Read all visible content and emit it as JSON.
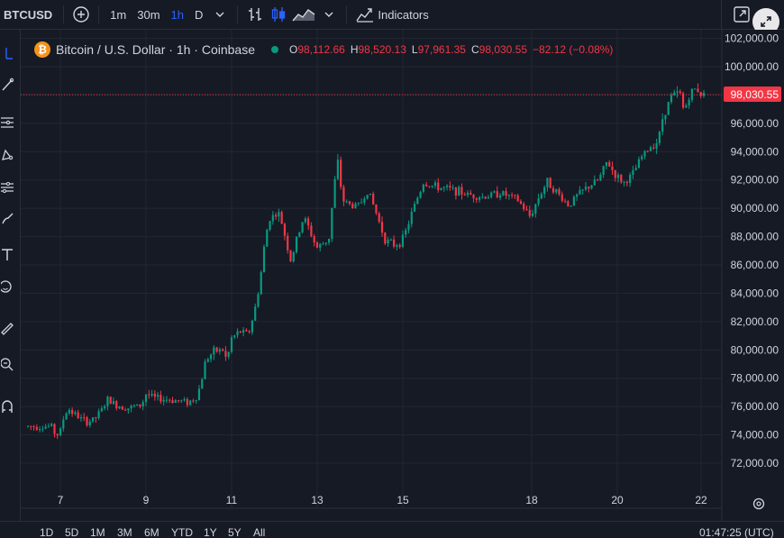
{
  "toolbar": {
    "symbol": "BTCUSD",
    "intervals": [
      "1m",
      "30m",
      "1h",
      "D"
    ],
    "active_interval": "1h",
    "indicators_label": "Indicators"
  },
  "legend": {
    "title": "Bitcoin / U.S. Dollar · 1h · Coinbase",
    "open_key": "O",
    "open": "98,112.66",
    "high_key": "H",
    "high": "98,520.13",
    "low_key": "L",
    "low": "97,961.35",
    "close_key": "C",
    "close": "98,030.55",
    "change": "−82.12 (−0.08%)"
  },
  "price_label": "98,030.55",
  "bottombar": {
    "ranges": [
      "1D",
      "5D",
      "1M",
      "3M",
      "6M",
      "YTD",
      "1Y",
      "5Y",
      "All"
    ],
    "clock": "01:47:25 (UTC)"
  },
  "colors": {
    "background": "#161a25",
    "up": "#089981",
    "down": "#f23645",
    "accent": "#2962ff",
    "bitcoin": "#f7931a"
  },
  "icons": {
    "top": [
      "add-symbol-icon",
      "chevron-down-icon",
      "bar-style-icon",
      "candles-icon",
      "area-icon",
      "indicators-icon",
      "screenshot-icon"
    ],
    "left": [
      "crosshair-icon",
      "trendline-icon",
      "fib-icon",
      "pattern-icon",
      "prediction-icon",
      "brush-icon",
      "text-icon",
      "emoji-icon",
      "ruler-icon",
      "zoom-icon",
      "magnet-icon"
    ]
  },
  "chart_data": {
    "type": "candlestick",
    "symbol": "BTCUSD",
    "interval": "1h",
    "x_tick_labels": [
      "7",
      "9",
      "11",
      "13",
      "15",
      "18",
      "20",
      "22"
    ],
    "y_tick_labels": [
      "72,000.00",
      "74,000.00",
      "76,000.00",
      "78,000.00",
      "80,000.00",
      "82,000.00",
      "84,000.00",
      "86,000.00",
      "88,000.00",
      "90,000.00",
      "92,000.00",
      "94,000.00",
      "96,000.00",
      "98,000.00",
      "100,000.00",
      "102,000.00"
    ],
    "ylim": [
      71000,
      102200
    ],
    "last_price": 98030.55,
    "close_path": [
      [
        6.8,
        74600
      ],
      [
        6.9,
        73900
      ],
      [
        7.0,
        74300
      ],
      [
        7.1,
        75500
      ],
      [
        7.2,
        75800
      ],
      [
        7.4,
        75300
      ],
      [
        7.6,
        74900
      ],
      [
        7.8,
        75100
      ],
      [
        8.0,
        75900
      ],
      [
        8.1,
        76500
      ],
      [
        8.3,
        76100
      ],
      [
        8.6,
        75900
      ],
      [
        8.9,
        76100
      ],
      [
        9.0,
        76900
      ],
      [
        9.2,
        76600
      ],
      [
        9.5,
        76500
      ],
      [
        9.8,
        76400
      ],
      [
        10.0,
        76300
      ],
      [
        10.2,
        76700
      ],
      [
        10.3,
        77800
      ],
      [
        10.4,
        79300
      ],
      [
        10.6,
        79900
      ],
      [
        10.8,
        80000
      ],
      [
        10.9,
        79200
      ],
      [
        11.0,
        80800
      ],
      [
        11.2,
        81300
      ],
      [
        11.4,
        81100
      ],
      [
        11.5,
        82200
      ],
      [
        11.6,
        83500
      ],
      [
        11.7,
        85500
      ],
      [
        11.8,
        88000
      ],
      [
        11.9,
        89300
      ],
      [
        12.1,
        89700
      ],
      [
        12.2,
        88800
      ],
      [
        12.4,
        86200
      ],
      [
        12.5,
        87500
      ],
      [
        12.7,
        89400
      ],
      [
        12.8,
        88700
      ],
      [
        13.0,
        87200
      ],
      [
        13.2,
        87600
      ],
      [
        13.3,
        88000
      ],
      [
        13.4,
        91500
      ],
      [
        13.5,
        93300
      ],
      [
        13.6,
        90600
      ],
      [
        13.8,
        90200
      ],
      [
        14.0,
        90200
      ],
      [
        14.2,
        91300
      ],
      [
        14.4,
        89600
      ],
      [
        14.6,
        87800
      ],
      [
        14.8,
        87400
      ],
      [
        15.0,
        87700
      ],
      [
        15.1,
        88500
      ],
      [
        15.3,
        90300
      ],
      [
        15.5,
        91800
      ],
      [
        15.8,
        91500
      ],
      [
        16.2,
        91300
      ],
      [
        16.5,
        91000
      ],
      [
        16.9,
        90800
      ],
      [
        17.3,
        91100
      ],
      [
        17.7,
        90600
      ],
      [
        18.0,
        89400
      ],
      [
        18.2,
        90800
      ],
      [
        18.4,
        91900
      ],
      [
        18.6,
        91200
      ],
      [
        18.9,
        90200
      ],
      [
        19.1,
        90900
      ],
      [
        19.3,
        91400
      ],
      [
        19.6,
        92000
      ],
      [
        19.8,
        93300
      ],
      [
        20.0,
        92300
      ],
      [
        20.2,
        91800
      ],
      [
        20.4,
        92400
      ],
      [
        20.6,
        93600
      ],
      [
        20.8,
        94300
      ],
      [
        21.0,
        94800
      ],
      [
        21.1,
        96400
      ],
      [
        21.3,
        97900
      ],
      [
        21.5,
        98200
      ],
      [
        21.6,
        96800
      ],
      [
        21.7,
        97800
      ],
      [
        21.8,
        98300
      ],
      [
        21.9,
        98500
      ],
      [
        22.0,
        98030
      ]
    ]
  }
}
